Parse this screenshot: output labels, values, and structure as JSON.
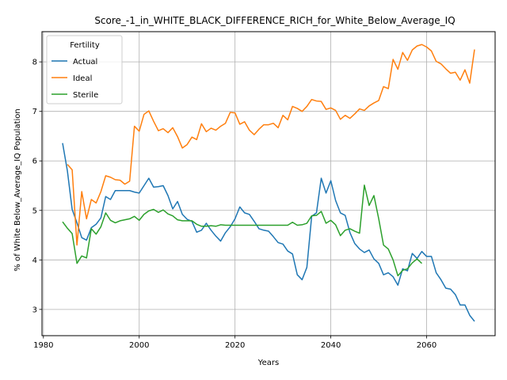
{
  "chart_data": {
    "type": "line",
    "title": "Score_-1_in_WHITE_BLACK_DIFFERENCE_RICH_for_White_Below_Average_IQ",
    "xlabel": "Years",
    "ylabel": "% of White Below_Average_IQ Population",
    "xlim": [
      1979.7,
      2074.3
    ],
    "ylim": [
      2.47,
      8.61
    ],
    "xticks": [
      1980,
      2000,
      2020,
      2040,
      2060
    ],
    "yticks": [
      3,
      4,
      5,
      6,
      7,
      8
    ],
    "grid": true,
    "legend": {
      "title": "Fertility",
      "placement": "top-left"
    },
    "series": [
      {
        "name": "Actual",
        "color": "#1f77b4",
        "points": [
          [
            1984,
            6.36
          ],
          [
            1985,
            5.8
          ],
          [
            1986,
            5.02
          ],
          [
            1987,
            4.75
          ],
          [
            1988,
            4.45
          ],
          [
            1989,
            4.4
          ],
          [
            1990,
            4.65
          ],
          [
            1991,
            4.72
          ],
          [
            1992,
            4.85
          ],
          [
            1993,
            5.28
          ],
          [
            1994,
            5.22
          ],
          [
            1995,
            5.4
          ],
          [
            1996,
            5.4
          ],
          [
            1997,
            5.4
          ],
          [
            1998,
            5.4
          ],
          [
            1999,
            5.37
          ],
          [
            2000,
            5.35
          ],
          [
            2001,
            5.5
          ],
          [
            2002,
            5.65
          ],
          [
            2003,
            5.47
          ],
          [
            2004,
            5.48
          ],
          [
            2005,
            5.5
          ],
          [
            2006,
            5.3
          ],
          [
            2007,
            5.03
          ],
          [
            2008,
            5.18
          ],
          [
            2009,
            4.92
          ],
          [
            2010,
            4.82
          ],
          [
            2011,
            4.78
          ],
          [
            2012,
            4.56
          ],
          [
            2013,
            4.6
          ],
          [
            2014,
            4.74
          ],
          [
            2015,
            4.6
          ],
          [
            2016,
            4.48
          ],
          [
            2017,
            4.38
          ],
          [
            2018,
            4.55
          ],
          [
            2019,
            4.67
          ],
          [
            2020,
            4.83
          ],
          [
            2021,
            5.07
          ],
          [
            2022,
            4.95
          ],
          [
            2023,
            4.92
          ],
          [
            2024,
            4.78
          ],
          [
            2025,
            4.63
          ],
          [
            2026,
            4.6
          ],
          [
            2027,
            4.58
          ],
          [
            2028,
            4.47
          ],
          [
            2029,
            4.35
          ],
          [
            2030,
            4.32
          ],
          [
            2031,
            4.18
          ],
          [
            2032,
            4.12
          ],
          [
            2033,
            3.7
          ],
          [
            2034,
            3.6
          ],
          [
            2035,
            3.85
          ],
          [
            2036,
            4.88
          ],
          [
            2037,
            4.95
          ],
          [
            2038,
            5.65
          ],
          [
            2039,
            5.35
          ],
          [
            2040,
            5.6
          ],
          [
            2041,
            5.2
          ],
          [
            2042,
            4.95
          ],
          [
            2043,
            4.9
          ],
          [
            2044,
            4.55
          ],
          [
            2045,
            4.33
          ],
          [
            2046,
            4.22
          ],
          [
            2047,
            4.15
          ],
          [
            2048,
            4.2
          ],
          [
            2049,
            4.02
          ],
          [
            2050,
            3.93
          ],
          [
            2051,
            3.7
          ],
          [
            2052,
            3.74
          ],
          [
            2053,
            3.66
          ],
          [
            2054,
            3.49
          ],
          [
            2055,
            3.82
          ],
          [
            2056,
            3.78
          ],
          [
            2057,
            4.13
          ],
          [
            2058,
            4.03
          ],
          [
            2059,
            4.17
          ],
          [
            2060,
            4.07
          ],
          [
            2061,
            4.07
          ],
          [
            2062,
            3.74
          ],
          [
            2063,
            3.6
          ],
          [
            2064,
            3.43
          ],
          [
            2065,
            3.41
          ],
          [
            2066,
            3.3
          ],
          [
            2067,
            3.09
          ],
          [
            2068,
            3.09
          ],
          [
            2069,
            2.88
          ],
          [
            2070,
            2.76
          ]
        ]
      },
      {
        "name": "Ideal",
        "color": "#ff7f0e",
        "points": [
          [
            1985,
            5.93
          ],
          [
            1986,
            5.82
          ],
          [
            1987,
            4.3
          ],
          [
            1988,
            5.38
          ],
          [
            1989,
            4.83
          ],
          [
            1990,
            5.22
          ],
          [
            1991,
            5.15
          ],
          [
            1992,
            5.38
          ],
          [
            1993,
            5.7
          ],
          [
            1994,
            5.67
          ],
          [
            1995,
            5.62
          ],
          [
            1996,
            5.61
          ],
          [
            1997,
            5.53
          ],
          [
            1998,
            5.59
          ],
          [
            1999,
            6.7
          ],
          [
            2000,
            6.6
          ],
          [
            2001,
            6.94
          ],
          [
            2002,
            7.01
          ],
          [
            2003,
            6.8
          ],
          [
            2004,
            6.61
          ],
          [
            2005,
            6.65
          ],
          [
            2006,
            6.57
          ],
          [
            2007,
            6.67
          ],
          [
            2008,
            6.49
          ],
          [
            2009,
            6.26
          ],
          [
            2010,
            6.33
          ],
          [
            2011,
            6.48
          ],
          [
            2012,
            6.43
          ],
          [
            2013,
            6.75
          ],
          [
            2014,
            6.59
          ],
          [
            2015,
            6.66
          ],
          [
            2016,
            6.62
          ],
          [
            2017,
            6.7
          ],
          [
            2018,
            6.76
          ],
          [
            2019,
            6.98
          ],
          [
            2020,
            6.97
          ],
          [
            2021,
            6.74
          ],
          [
            2022,
            6.79
          ],
          [
            2023,
            6.62
          ],
          [
            2024,
            6.53
          ],
          [
            2025,
            6.64
          ],
          [
            2026,
            6.73
          ],
          [
            2027,
            6.73
          ],
          [
            2028,
            6.76
          ],
          [
            2029,
            6.67
          ],
          [
            2030,
            6.92
          ],
          [
            2031,
            6.83
          ],
          [
            2032,
            7.1
          ],
          [
            2033,
            7.06
          ],
          [
            2034,
            7.0
          ],
          [
            2035,
            7.1
          ],
          [
            2036,
            7.24
          ],
          [
            2037,
            7.21
          ],
          [
            2038,
            7.2
          ],
          [
            2039,
            7.04
          ],
          [
            2040,
            7.07
          ],
          [
            2041,
            7.02
          ],
          [
            2042,
            6.84
          ],
          [
            2043,
            6.92
          ],
          [
            2044,
            6.86
          ],
          [
            2045,
            6.95
          ],
          [
            2046,
            7.05
          ],
          [
            2047,
            7.02
          ],
          [
            2048,
            7.11
          ],
          [
            2049,
            7.17
          ],
          [
            2050,
            7.22
          ],
          [
            2051,
            7.5
          ],
          [
            2052,
            7.46
          ],
          [
            2053,
            8.05
          ],
          [
            2054,
            7.85
          ],
          [
            2055,
            8.19
          ],
          [
            2056,
            8.03
          ],
          [
            2057,
            8.24
          ],
          [
            2058,
            8.32
          ],
          [
            2059,
            8.35
          ],
          [
            2060,
            8.3
          ],
          [
            2061,
            8.22
          ],
          [
            2062,
            8.01
          ],
          [
            2063,
            7.96
          ],
          [
            2064,
            7.86
          ],
          [
            2065,
            7.77
          ],
          [
            2066,
            7.79
          ],
          [
            2067,
            7.63
          ],
          [
            2068,
            7.84
          ],
          [
            2069,
            7.57
          ],
          [
            2070,
            8.25
          ]
        ]
      },
      {
        "name": "Sterile",
        "color": "#2ca02c",
        "points": [
          [
            1984,
            4.77
          ],
          [
            1985,
            4.64
          ],
          [
            1986,
            4.53
          ],
          [
            1987,
            3.93
          ],
          [
            1988,
            4.08
          ],
          [
            1989,
            4.04
          ],
          [
            1990,
            4.63
          ],
          [
            1991,
            4.52
          ],
          [
            1992,
            4.67
          ],
          [
            1993,
            4.95
          ],
          [
            1994,
            4.8
          ],
          [
            1995,
            4.75
          ],
          [
            1996,
            4.79
          ],
          [
            1997,
            4.81
          ],
          [
            1998,
            4.83
          ],
          [
            1999,
            4.88
          ],
          [
            2000,
            4.8
          ],
          [
            2001,
            4.92
          ],
          [
            2002,
            4.99
          ],
          [
            2003,
            5.02
          ],
          [
            2004,
            4.96
          ],
          [
            2005,
            5.01
          ],
          [
            2006,
            4.93
          ],
          [
            2007,
            4.89
          ],
          [
            2008,
            4.81
          ],
          [
            2009,
            4.79
          ],
          [
            2010,
            4.79
          ],
          [
            2011,
            4.79
          ],
          [
            2012,
            4.72
          ],
          [
            2013,
            4.68
          ],
          [
            2014,
            4.68
          ],
          [
            2015,
            4.69
          ],
          [
            2016,
            4.68
          ],
          [
            2017,
            4.71
          ],
          [
            2018,
            4.7
          ],
          [
            2019,
            4.7
          ],
          [
            2020,
            4.7
          ],
          [
            2021,
            4.7
          ],
          [
            2022,
            4.7
          ],
          [
            2023,
            4.7
          ],
          [
            2024,
            4.7
          ],
          [
            2025,
            4.7
          ],
          [
            2026,
            4.7
          ],
          [
            2027,
            4.7
          ],
          [
            2028,
            4.7
          ],
          [
            2029,
            4.7
          ],
          [
            2030,
            4.7
          ],
          [
            2031,
            4.7
          ],
          [
            2032,
            4.76
          ],
          [
            2033,
            4.7
          ],
          [
            2034,
            4.71
          ],
          [
            2035,
            4.74
          ],
          [
            2036,
            4.89
          ],
          [
            2037,
            4.9
          ],
          [
            2038,
            4.98
          ],
          [
            2039,
            4.74
          ],
          [
            2040,
            4.8
          ],
          [
            2041,
            4.71
          ],
          [
            2042,
            4.49
          ],
          [
            2043,
            4.6
          ],
          [
            2044,
            4.63
          ],
          [
            2045,
            4.58
          ],
          [
            2046,
            4.54
          ],
          [
            2047,
            5.51
          ],
          [
            2048,
            5.1
          ],
          [
            2049,
            5.3
          ],
          [
            2050,
            4.83
          ],
          [
            2051,
            4.3
          ],
          [
            2052,
            4.22
          ],
          [
            2053,
            4.0
          ],
          [
            2054,
            3.68
          ],
          [
            2055,
            3.79
          ],
          [
            2056,
            3.82
          ],
          [
            2057,
            3.94
          ],
          [
            2058,
            4.02
          ],
          [
            2059,
            3.93
          ]
        ]
      }
    ]
  }
}
